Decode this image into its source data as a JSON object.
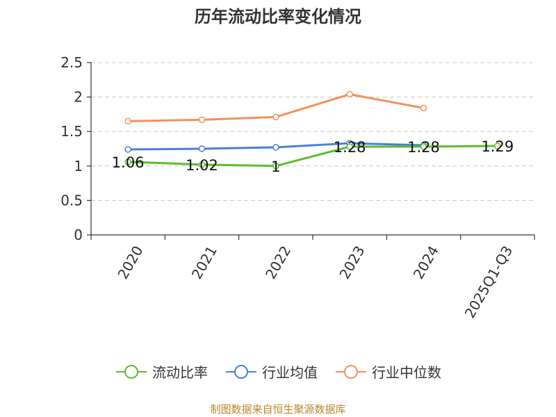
{
  "chart_data": {
    "type": "line",
    "title": "历年流动比率变化情况",
    "categories": [
      "2020",
      "2021",
      "2022",
      "2023",
      "2024",
      "2025Q1-Q3"
    ],
    "y_ticks": [
      "0",
      "0.5",
      "1",
      "1.5",
      "2",
      "2.5"
    ],
    "ylim": [
      0,
      2.5
    ],
    "grid": "horizontal dashed",
    "legend_position": "bottom",
    "series": [
      {
        "name": "流动比率",
        "color": "#5cbd29",
        "values": [
          1.06,
          1.02,
          1.0,
          1.28,
          1.28,
          1.29
        ],
        "labels": [
          "1.06",
          "1.02",
          "1",
          "1.28",
          "1.28",
          "1.29"
        ]
      },
      {
        "name": "行业均值",
        "color": "#4a7fdb",
        "values": [
          1.24,
          1.25,
          1.27,
          1.33,
          1.3,
          null
        ]
      },
      {
        "name": "行业中位数",
        "color": "#f59059",
        "values": [
          1.65,
          1.67,
          1.71,
          2.04,
          1.84,
          null
        ]
      }
    ]
  },
  "footer": {
    "source": "制图数据来自恒生聚源数据库"
  }
}
